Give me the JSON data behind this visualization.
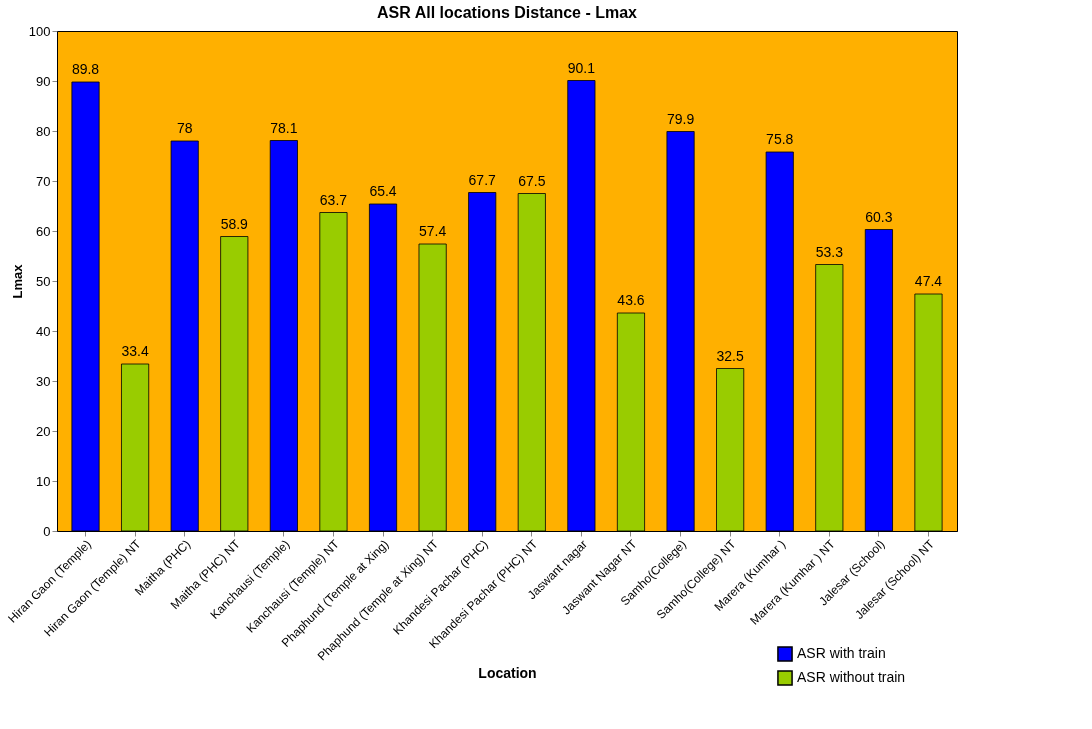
{
  "chart_data": {
    "type": "bar",
    "title": "ASR All locations Distance - Lmax",
    "xlabel": "Location",
    "ylabel": "Lmax",
    "categories": [
      "Hiran Gaon (Temple)",
      "Hiran Gaon (Temple) NT",
      "Maitha (PHC)",
      "Maitha (PHC) NT",
      "Kanchausi (Temple)",
      "Kanchausi (Temple) NT",
      "Phaphund (Temple at Xing)",
      "Phaphund (Temple at Xing) NT",
      "Khandesi Pachar (PHC)",
      "Khandesi Pachar (PHC) NT",
      "Jaswant nagar",
      "Jaswant Nagar NT",
      "Samho(College)",
      "Samho(College) NT",
      "Marera (Kumhar )",
      "Marera (Kumhar ) NT",
      "Jalesar (School)",
      "Jalesar (School) NT"
    ],
    "series": [
      {
        "name": "ASR with train",
        "color": "#0000ff",
        "values": [
          89.8,
          null,
          78,
          null,
          78.1,
          null,
          65.4,
          null,
          67.7,
          null,
          90.1,
          null,
          79.9,
          null,
          75.8,
          null,
          60.3,
          null
        ]
      },
      {
        "name": "ASR without train",
        "color": "#99cc00",
        "values": [
          null,
          33.4,
          null,
          58.9,
          null,
          63.7,
          null,
          57.4,
          null,
          67.5,
          null,
          43.6,
          null,
          32.5,
          null,
          53.3,
          null,
          47.4
        ]
      }
    ],
    "ylim": [
      0,
      100
    ],
    "yticks": [
      0,
      10,
      20,
      30,
      40,
      50,
      60,
      70,
      80,
      90,
      100
    ],
    "grid": false,
    "data_labels": true,
    "legend": "bottom right"
  }
}
